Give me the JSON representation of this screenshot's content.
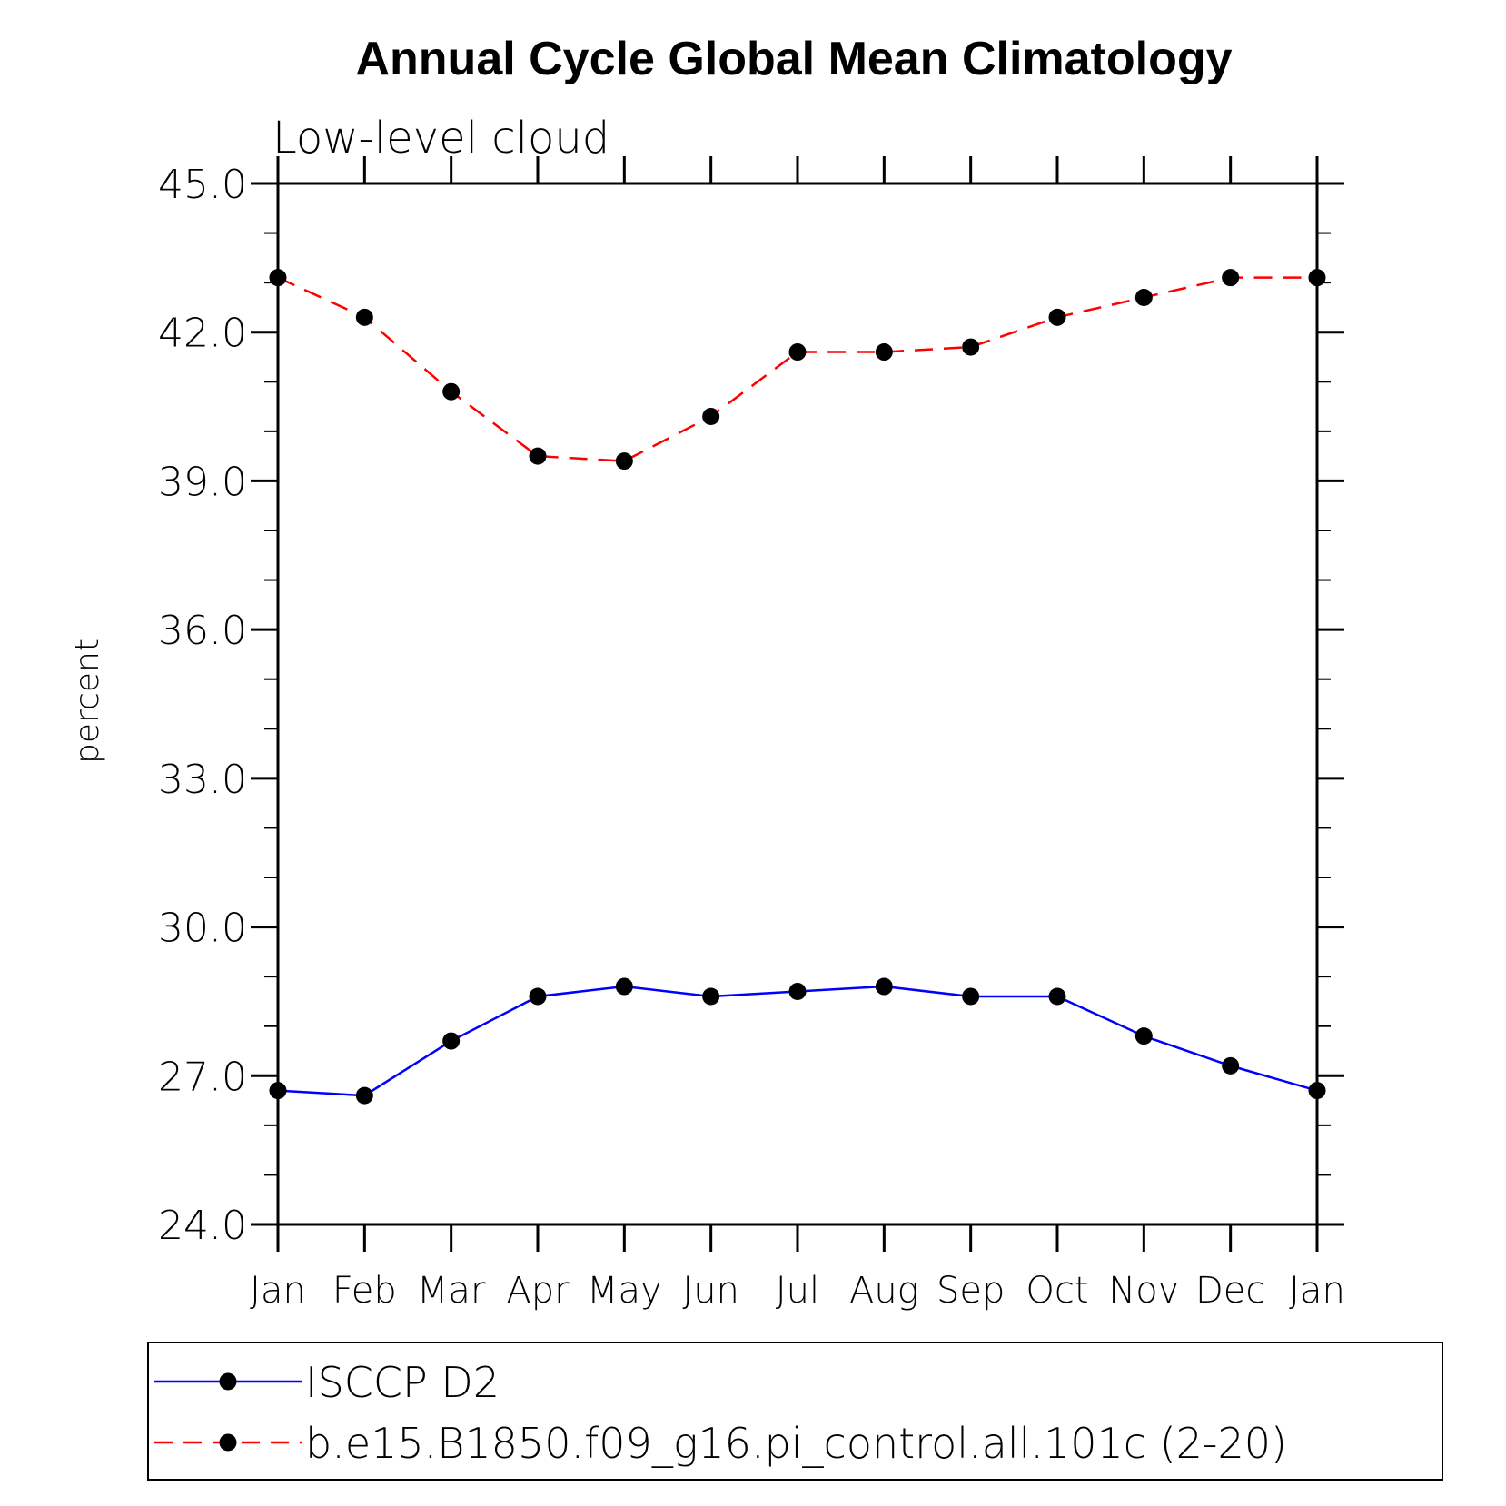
{
  "chart_data": {
    "type": "line",
    "title": "Annual Cycle Global Mean Climatology",
    "subtitle": "Low-level cloud",
    "ylabel": "percent",
    "xlabel": "",
    "ylim": [
      24.0,
      45.0
    ],
    "yticks": [
      "24.0",
      "27.0",
      "30.0",
      "33.0",
      "36.0",
      "39.0",
      "42.0",
      "45.0"
    ],
    "categories": [
      "Jan",
      "Feb",
      "Mar",
      "Apr",
      "May",
      "Jun",
      "Jul",
      "Aug",
      "Sep",
      "Oct",
      "Nov",
      "Dec",
      "Jan"
    ],
    "legend_position": "bottom",
    "series": [
      {
        "name": "ISCCP D2",
        "color": "#0000ff",
        "dash": "solid",
        "values": [
          26.7,
          26.6,
          27.7,
          28.6,
          28.8,
          28.6,
          28.7,
          28.8,
          28.6,
          28.6,
          27.8,
          27.2,
          26.7
        ]
      },
      {
        "name": "b.e15.B1850.f09_g16.pi_control.all.101c (2-20)",
        "color": "#ff0000",
        "dash": "dashed",
        "values": [
          43.1,
          42.3,
          40.8,
          39.5,
          39.4,
          40.3,
          41.6,
          41.6,
          41.7,
          42.3,
          42.7,
          43.1,
          43.1
        ]
      }
    ]
  }
}
